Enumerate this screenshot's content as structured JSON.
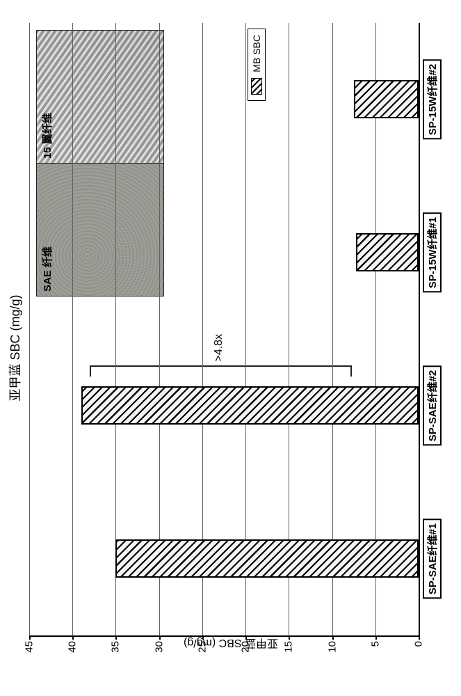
{
  "chart": {
    "type": "bar",
    "title": "亚甲蓝 SBC (mg/g)",
    "title_fontsize": 18,
    "y_axis_title": "亚甲蓝 SBC (mg/g)",
    "y_axis_fontsize": 16,
    "ylim": [
      0,
      45
    ],
    "ytick_step": 5,
    "yticks": [
      0,
      5,
      10,
      15,
      20,
      25,
      30,
      35,
      40,
      45
    ],
    "grid_color": "#606060",
    "background_color": "#ffffff",
    "bar_fill_color": "#f5f5f5",
    "bar_hatch_color": "#000000",
    "bar_border_color": "#000000",
    "bar_width_ratio": 0.25,
    "categories": [
      "SP-SAE纤维#1",
      "SP-SAE纤维#2",
      "SP-15W纤维#1",
      "SP-15W纤维#2"
    ],
    "values": [
      35,
      39,
      7.2,
      7.5
    ],
    "annotation": {
      "text": ">4.8x",
      "from_bar_index": 1,
      "low_value": 8,
      "high_value": 38
    },
    "legend": {
      "label": "MB SBC",
      "fill": "hatch"
    },
    "inset": {
      "panes": [
        {
          "caption": "SAE 纤维",
          "texture": "mottled-grey"
        },
        {
          "caption": "15 翼纤维",
          "texture": "diagonal-striated"
        }
      ]
    },
    "label_fontsize": 15
  }
}
